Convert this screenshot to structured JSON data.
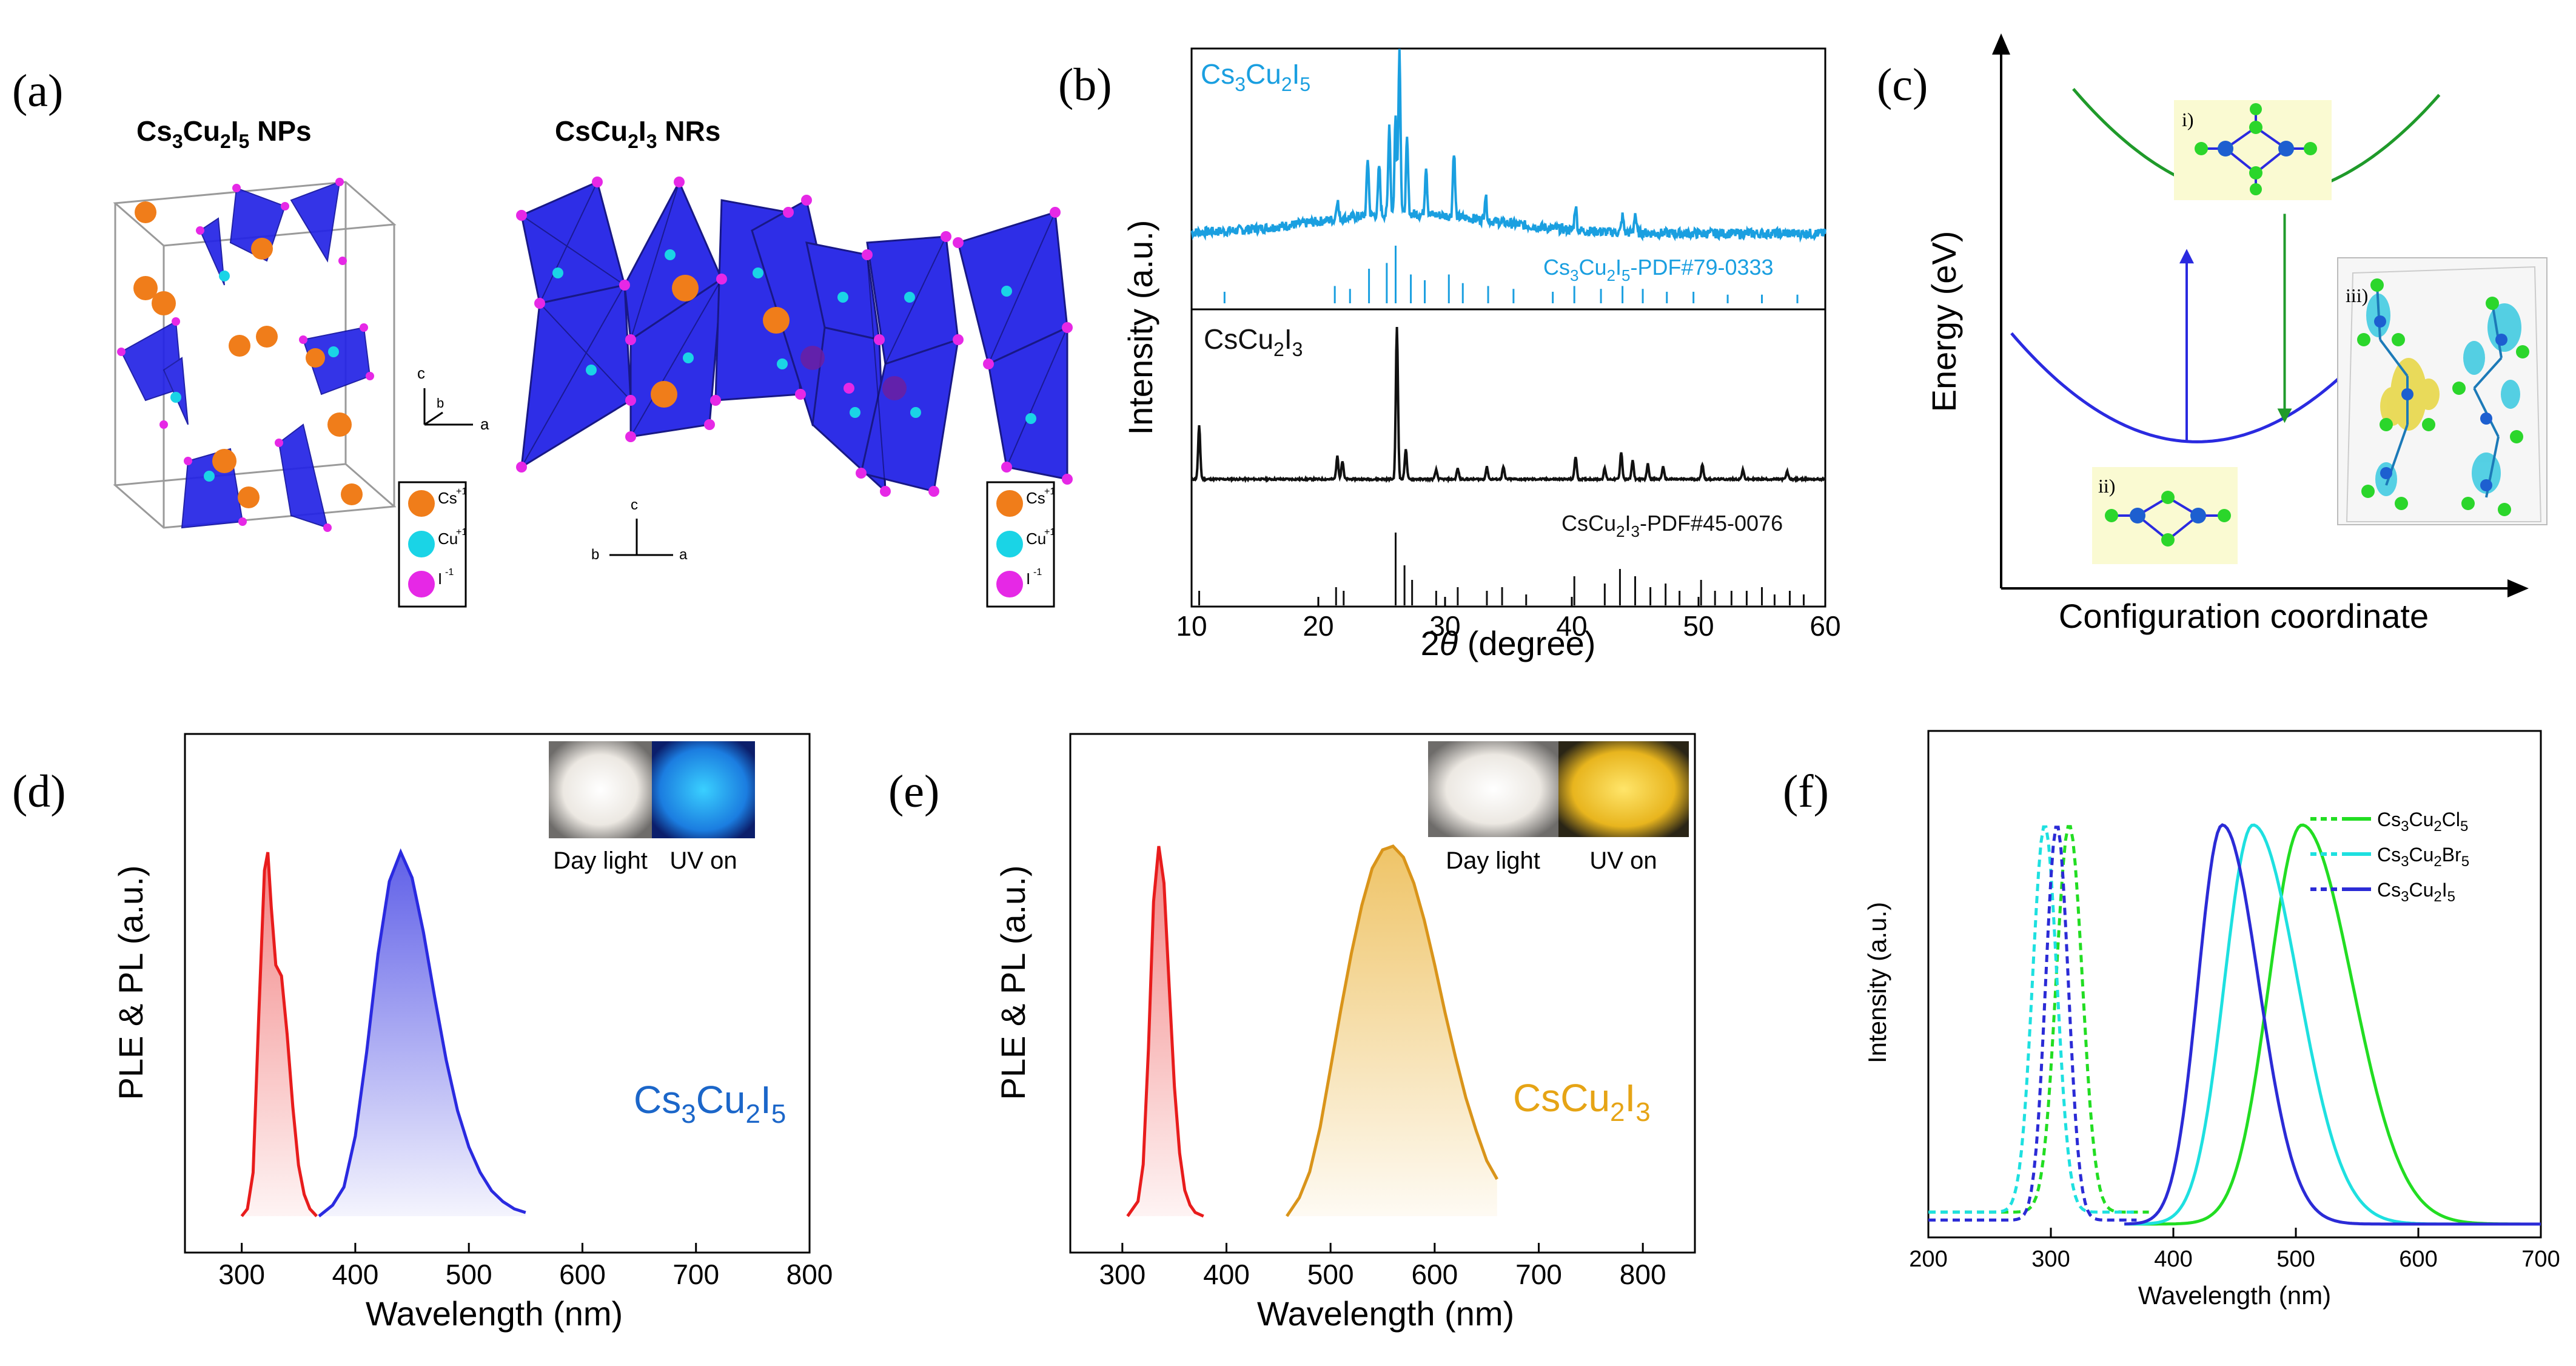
{
  "figure": {
    "panel_labels": [
      "(a)",
      "(b)",
      "(c)",
      "(d)",
      "(e)",
      "(f)"
    ]
  },
  "colors": {
    "cs3_blue": "#1a9fe0",
    "csCu_black": "#111111",
    "ple_red": "#e81c1c",
    "pl_blue": "#2a2ae0",
    "pl_yellow": "#e6a415",
    "cl_green": "#22dd22",
    "br_cyan": "#1ee0e0",
    "i_navy": "#2b2bd6",
    "tetra_blue": "#2323e6",
    "cs_orange": "#f07d1a",
    "cu_cyan": "#1ad4e6",
    "i_magenta": "#e628e6"
  },
  "panel_a": {
    "left_title": {
      "base1": "Cs",
      "sub1": "3",
      "base2": "Cu",
      "sub2": "2",
      "base3": "I",
      "sub3": "5",
      "suffix": " NPs"
    },
    "right_title": {
      "base1": "CsCu",
      "sub1": "2",
      "base2": "I",
      "sub2": "3",
      "suffix": " NRs"
    },
    "legend": [
      {
        "label": "Cs",
        "charge": "+1"
      },
      {
        "label": "Cu",
        "charge": "+1"
      },
      {
        "label": "I",
        "charge": "-1"
      }
    ],
    "axes_labels": {
      "c": "c",
      "a": "a",
      "b": "b"
    }
  },
  "panel_b": {
    "top_label": {
      "base1": "Cs",
      "sub1": "3",
      "base2": "Cu",
      "sub2": "2",
      "base3": "I",
      "sub3": "5"
    },
    "top_ref": {
      "base1": "Cs",
      "sub1": "3",
      "base2": "Cu",
      "sub2": "2",
      "base3": "I",
      "sub3": "5",
      "suffix": "-PDF#79-0333"
    },
    "bottom_label": {
      "base1": "CsCu",
      "sub1": "2",
      "base2": "I",
      "sub2": "3"
    },
    "bottom_ref": {
      "base1": "CsCu",
      "sub1": "2",
      "base2": "I",
      "sub2": "3",
      "suffix": "-PDF#45-0076"
    }
  },
  "panel_c": {
    "inset_labels": [
      "i)",
      "ii)",
      "iii)"
    ]
  },
  "panel_d": {
    "inset_captions": [
      "Day light",
      "UV on"
    ],
    "compound": {
      "base1": "Cs",
      "sub1": "3",
      "base2": "Cu",
      "sub2": "2",
      "base3": "I",
      "sub3": "5"
    }
  },
  "panel_e": {
    "inset_captions": [
      "Day light",
      "UV on"
    ],
    "compound": {
      "base1": "CsCu",
      "sub1": "2",
      "base2": "I",
      "sub2": "3"
    }
  },
  "chart_data": [
    {
      "id": "b",
      "type": "line",
      "xlabel": "2θ (degree)",
      "xlabel_prefix": "2",
      "xlabel_symbol": "θ",
      "xlabel_suffix": " (degree)",
      "ylabel": "Intensity (a.u.)",
      "xlim": [
        10,
        60
      ],
      "xticks": [
        10,
        20,
        30,
        40,
        50,
        60
      ],
      "series": [
        {
          "name": "Cs3Cu2I5",
          "peaks": [
            [
              21.5,
              0.12
            ],
            [
              23.9,
              0.35
            ],
            [
              24.8,
              0.3
            ],
            [
              25.6,
              0.55
            ],
            [
              26.1,
              0.6
            ],
            [
              26.4,
              1.0
            ],
            [
              27.0,
              0.45
            ],
            [
              28.5,
              0.3
            ],
            [
              30.7,
              0.4
            ],
            [
              33.2,
              0.15
            ],
            [
              40.3,
              0.15
            ],
            [
              44.0,
              0.1
            ],
            [
              45.0,
              0.12
            ]
          ],
          "ref_sticks": [
            [
              12.6,
              0.2
            ],
            [
              21.3,
              0.3
            ],
            [
              22.5,
              0.25
            ],
            [
              24.0,
              0.6
            ],
            [
              25.4,
              0.7
            ],
            [
              26.1,
              1.0
            ],
            [
              27.3,
              0.5
            ],
            [
              28.4,
              0.4
            ],
            [
              30.3,
              0.5
            ],
            [
              31.4,
              0.35
            ],
            [
              33.4,
              0.3
            ],
            [
              35.4,
              0.25
            ],
            [
              38.5,
              0.2
            ],
            [
              40.2,
              0.3
            ],
            [
              42.3,
              0.25
            ],
            [
              44.0,
              0.3
            ],
            [
              45.6,
              0.25
            ],
            [
              47.5,
              0.2
            ],
            [
              49.6,
              0.2
            ],
            [
              52.3,
              0.15
            ],
            [
              55.0,
              0.15
            ],
            [
              57.8,
              0.15
            ]
          ]
        },
        {
          "name": "CsCu2I3",
          "peaks": [
            [
              10.6,
              0.35
            ],
            [
              21.5,
              0.15
            ],
            [
              21.9,
              0.12
            ],
            [
              26.2,
              1.0
            ],
            [
              26.9,
              0.2
            ],
            [
              29.3,
              0.06
            ],
            [
              31.0,
              0.07
            ],
            [
              33.3,
              0.08
            ],
            [
              34.6,
              0.08
            ],
            [
              40.3,
              0.15
            ],
            [
              42.6,
              0.07
            ],
            [
              43.9,
              0.18
            ],
            [
              44.8,
              0.12
            ],
            [
              46.0,
              0.1
            ],
            [
              47.2,
              0.08
            ],
            [
              50.3,
              0.1
            ],
            [
              53.5,
              0.06
            ],
            [
              57.0,
              0.05
            ]
          ],
          "ref_sticks": [
            [
              10.6,
              0.2
            ],
            [
              21.4,
              0.25
            ],
            [
              22.0,
              0.2
            ],
            [
              26.1,
              1.0
            ],
            [
              26.8,
              0.55
            ],
            [
              27.4,
              0.35
            ],
            [
              29.3,
              0.2
            ],
            [
              31.0,
              0.25
            ],
            [
              33.3,
              0.2
            ],
            [
              34.5,
              0.25
            ],
            [
              36.4,
              0.15
            ],
            [
              40.2,
              0.4
            ],
            [
              42.6,
              0.3
            ],
            [
              43.8,
              0.5
            ],
            [
              45.0,
              0.4
            ],
            [
              46.2,
              0.25
            ],
            [
              47.4,
              0.3
            ],
            [
              48.5,
              0.2
            ],
            [
              50.2,
              0.35
            ],
            [
              51.3,
              0.2
            ],
            [
              52.6,
              0.2
            ],
            [
              53.8,
              0.2
            ],
            [
              55.0,
              0.25
            ],
            [
              56.0,
              0.15
            ],
            [
              57.2,
              0.2
            ],
            [
              58.3,
              0.15
            ]
          ]
        }
      ]
    },
    {
      "id": "c",
      "type": "line",
      "xlabel": "Configuration coordinate",
      "ylabel": "Energy (eV)",
      "series": [
        {
          "name": "excited state",
          "kind": "parabola",
          "vertex_x": 0.5,
          "vertex_y": 0.72,
          "edge_y": 0.92
        },
        {
          "name": "ground state",
          "kind": "parabola",
          "vertex_x": 0.38,
          "vertex_y": 0.27,
          "edge_y": 0.47
        }
      ],
      "arrows": [
        {
          "name": "absorption",
          "from": [
            0.36,
            0.27
          ],
          "to": [
            0.36,
            0.62
          ]
        },
        {
          "name": "emission",
          "from": [
            0.55,
            0.69
          ],
          "to": [
            0.55,
            0.31
          ]
        }
      ]
    },
    {
      "id": "d",
      "type": "area",
      "xlabel": "Wavelength (nm)",
      "ylabel": "PLE & PL (a.u.)",
      "xlim": [
        250,
        800
      ],
      "xticks": [
        300,
        400,
        500,
        600,
        700,
        800
      ],
      "series": [
        {
          "name": "PLE",
          "x": [
            300,
            305,
            310,
            315,
            320,
            323,
            326,
            330,
            335,
            340,
            345,
            350,
            355,
            360,
            366
          ],
          "y": [
            0.0,
            0.02,
            0.12,
            0.55,
            0.95,
            1.0,
            0.85,
            0.69,
            0.66,
            0.5,
            0.3,
            0.14,
            0.06,
            0.02,
            0.0
          ]
        },
        {
          "name": "PL",
          "x": [
            368,
            380,
            390,
            400,
            410,
            420,
            430,
            440,
            450,
            460,
            470,
            480,
            490,
            500,
            510,
            520,
            530,
            540,
            550
          ],
          "y": [
            0.0,
            0.03,
            0.08,
            0.22,
            0.45,
            0.72,
            0.92,
            1.0,
            0.93,
            0.78,
            0.6,
            0.43,
            0.29,
            0.19,
            0.12,
            0.07,
            0.04,
            0.02,
            0.01
          ]
        }
      ]
    },
    {
      "id": "e",
      "type": "area",
      "xlabel": "Wavelength (nm)",
      "ylabel": "PLE & PL (a.u.)",
      "xlim": [
        250,
        850
      ],
      "xticks": [
        300,
        400,
        500,
        600,
        700,
        800
      ],
      "series": [
        {
          "name": "PLE",
          "x": [
            305,
            315,
            320,
            325,
            330,
            335,
            340,
            345,
            350,
            355,
            360,
            365,
            370,
            378
          ],
          "y": [
            0.0,
            0.04,
            0.14,
            0.45,
            0.85,
            1.0,
            0.9,
            0.62,
            0.35,
            0.17,
            0.07,
            0.03,
            0.01,
            0.0
          ]
        },
        {
          "name": "PL",
          "x": [
            458,
            470,
            480,
            490,
            500,
            510,
            520,
            530,
            540,
            550,
            560,
            570,
            580,
            590,
            600,
            610,
            620,
            630,
            640,
            650,
            660
          ],
          "y": [
            0.0,
            0.05,
            0.12,
            0.24,
            0.4,
            0.56,
            0.71,
            0.84,
            0.94,
            0.99,
            1.0,
            0.97,
            0.9,
            0.8,
            0.68,
            0.55,
            0.43,
            0.32,
            0.23,
            0.15,
            0.1
          ]
        }
      ]
    },
    {
      "id": "f",
      "type": "line",
      "xlabel": "Wavelength (nm)",
      "ylabel": "Intensity (a.u.)",
      "xlim": [
        200,
        700
      ],
      "xticks": [
        200,
        300,
        400,
        500,
        600,
        700
      ],
      "legend_position": "top-right",
      "series": [
        {
          "name": "Cs3Cu2Cl5",
          "color": "#22dd22",
          "style": "dash",
          "kind": "gauss",
          "center": 315,
          "width": 15,
          "baseline": 0.03,
          "xstart": 200,
          "xend": 380
        },
        {
          "name": "Cs3Cu2Br5",
          "color": "#1ee0e0",
          "style": "dash",
          "kind": "gauss",
          "center": 295,
          "width": 14,
          "baseline": 0.03,
          "xstart": 200,
          "xend": 370
        },
        {
          "name": "Cs3Cu2I5",
          "color": "#2b2bd6",
          "style": "dash",
          "kind": "gauss",
          "center": 305,
          "width": 13,
          "baseline": 0.01,
          "xstart": 200,
          "xend": 370
        },
        {
          "name": "Cs3Cu2Cl5",
          "color": "#22dd22",
          "style": "solid",
          "kind": "gauss2",
          "center": 505,
          "w_left": 38,
          "w_right": 58,
          "xstart": 360,
          "xend": 700
        },
        {
          "name": "Cs3Cu2Br5",
          "color": "#1ee0e0",
          "style": "solid",
          "kind": "gauss2",
          "center": 465,
          "w_left": 33,
          "w_right": 52,
          "xstart": 360,
          "xend": 700
        },
        {
          "name": "Cs3Cu2I5",
          "color": "#2b2bd6",
          "style": "solid",
          "kind": "gauss2",
          "center": 440,
          "w_left": 28,
          "w_right": 42,
          "xstart": 360,
          "xend": 700
        }
      ],
      "legend": [
        {
          "base1": "Cs",
          "sub1": "3",
          "base2": "Cu",
          "sub2": "2",
          "base3": "Cl",
          "sub3": "5"
        },
        {
          "base1": "Cs",
          "sub1": "3",
          "base2": "Cu",
          "sub2": "2",
          "base3": "Br",
          "sub3": "5"
        },
        {
          "base1": "Cs",
          "sub1": "3",
          "base2": "Cu",
          "sub2": "2",
          "base3": "I",
          "sub3": "5"
        }
      ]
    }
  ]
}
